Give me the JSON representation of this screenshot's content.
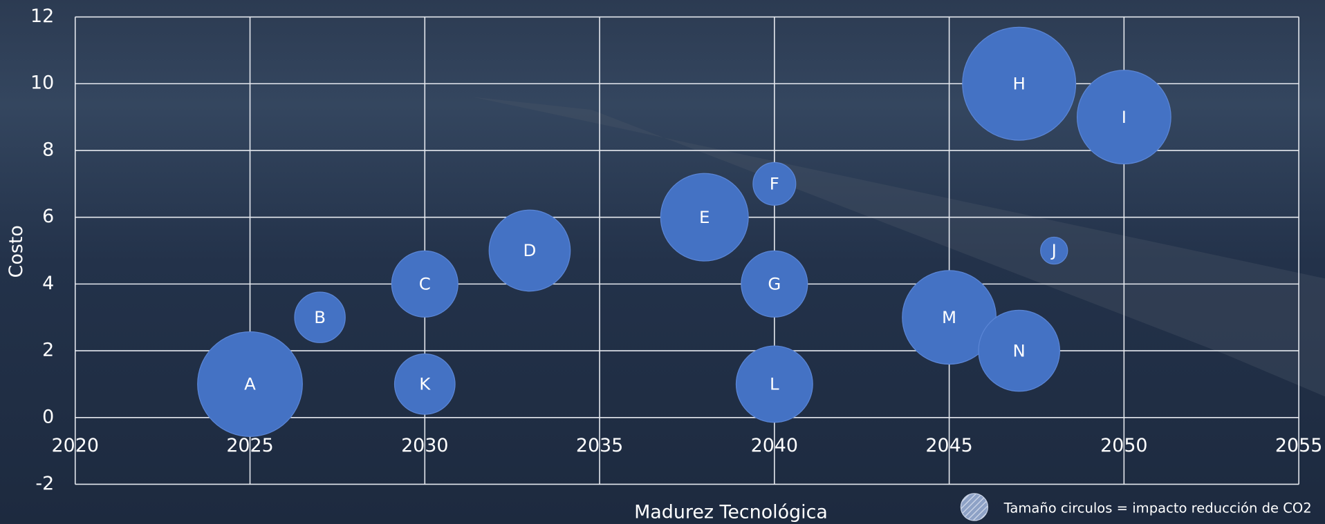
{
  "chart_data": {
    "type": "bubble",
    "x_label": "Madurez Tecnológica",
    "y_label": "Costo",
    "legend_note": "Tamaño circulos = impacto reducción de CO2",
    "labels": [
      "A",
      "B",
      "C",
      "D",
      "E",
      "F",
      "G",
      "H",
      "I",
      "J",
      "K",
      "L",
      "M",
      "N"
    ],
    "x": [
      2025,
      2027,
      2030,
      2033,
      2038,
      2040,
      2040,
      2047,
      2050,
      2048,
      2030,
      2040,
      2045,
      2047
    ],
    "values": [
      1,
      3,
      4,
      5,
      6,
      7,
      4,
      10,
      9,
      5,
      1,
      1,
      3,
      2
    ],
    "sizes": [
      15,
      3.5,
      6,
      9,
      10.5,
      2.5,
      6,
      17.5,
      12,
      1,
      5,
      8,
      12,
      9
    ],
    "color": "#4472c4",
    "xlim": [
      2020,
      2055
    ],
    "xticks": [
      2020,
      2025,
      2030,
      2035,
      2040,
      2045,
      2050,
      2055
    ],
    "ylim": [
      -2,
      12
    ],
    "yticks": [
      -2,
      0,
      2,
      4,
      6,
      8,
      10,
      12
    ],
    "grid": true
  }
}
